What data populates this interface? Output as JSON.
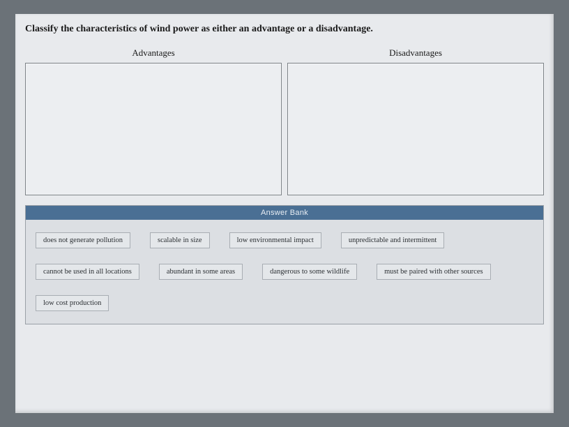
{
  "prompt": "Classify the characteristics of wind power as either an advantage or a disadvantage.",
  "bins": {
    "left": {
      "header": "Advantages"
    },
    "right": {
      "header": "Disadvantages"
    }
  },
  "answer_bank": {
    "header": "Answer Bank",
    "rows": [
      [
        "does not generate pollution",
        "scalable in size",
        "low environmental impact",
        "unpredictable and intermittent"
      ],
      [
        "cannot be used in all locations",
        "abundant in some areas",
        "dangerous to some wildlife",
        "must be paired with other sources"
      ],
      [
        "low cost production"
      ]
    ]
  },
  "colors": {
    "page_bg": "#6b7278",
    "sheet_bg": "#e8eaed",
    "bin_bg": "#eceef1",
    "bin_border": "#7d8287",
    "bank_header_bg": "#4a6f94",
    "bank_header_text": "#e9eef4",
    "bank_bg": "#dcdfe3",
    "chip_bg": "#e4e7ea",
    "chip_border": "#a8adb3"
  }
}
